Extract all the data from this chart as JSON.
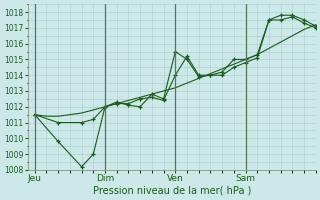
{
  "bg_color": "#cce8e8",
  "grid_color": "#aacccc",
  "line_color": "#1a5c1a",
  "ylim": [
    1008,
    1018.5
  ],
  "yticks": [
    1008,
    1009,
    1010,
    1011,
    1012,
    1013,
    1014,
    1015,
    1016,
    1017,
    1018
  ],
  "xlabel": "Pression niveau de la mer( hPa )",
  "xtick_labels": [
    "Jeu",
    "Dim",
    "Ven",
    "Sam"
  ],
  "xtick_positions": [
    0,
    30,
    60,
    90
  ],
  "xlim": [
    -3,
    120
  ],
  "trend_x": [
    0,
    5,
    10,
    15,
    20,
    25,
    30,
    35,
    40,
    45,
    50,
    55,
    60,
    65,
    70,
    75,
    80,
    85,
    90,
    95,
    100,
    105,
    110,
    115,
    120
  ],
  "trend_y": [
    1011.5,
    1011.4,
    1011.4,
    1011.5,
    1011.6,
    1011.8,
    1012.0,
    1012.2,
    1012.4,
    1012.6,
    1012.8,
    1013.0,
    1013.2,
    1013.5,
    1013.8,
    1014.1,
    1014.4,
    1014.7,
    1015.0,
    1015.3,
    1015.7,
    1016.1,
    1016.5,
    1016.9,
    1017.2
  ],
  "line2_x": [
    0,
    10,
    20,
    25,
    30,
    35,
    40,
    45,
    50,
    55,
    60,
    65,
    70,
    75,
    80,
    85,
    90,
    95,
    100,
    105,
    110,
    115,
    120
  ],
  "line2_y": [
    1011.5,
    1009.8,
    1008.2,
    1009.0,
    1012.0,
    1012.3,
    1012.1,
    1012.0,
    1012.8,
    1012.5,
    1015.5,
    1015.0,
    1013.9,
    1014.0,
    1014.2,
    1015.0,
    1015.0,
    1015.3,
    1017.5,
    1017.8,
    1017.8,
    1017.5,
    1017.1
  ],
  "line3_x": [
    0,
    10,
    20,
    25,
    30,
    35,
    40,
    45,
    50,
    55,
    60,
    65,
    70,
    75,
    80,
    85,
    90,
    95,
    100,
    105,
    110,
    115,
    120
  ],
  "line3_y": [
    1011.5,
    1011.0,
    1011.0,
    1011.2,
    1012.0,
    1012.2,
    1012.2,
    1012.5,
    1012.6,
    1012.4,
    1014.0,
    1015.2,
    1014.0,
    1014.0,
    1014.0,
    1014.5,
    1014.8,
    1015.1,
    1017.5,
    1017.5,
    1017.7,
    1017.3,
    1017.0
  ]
}
